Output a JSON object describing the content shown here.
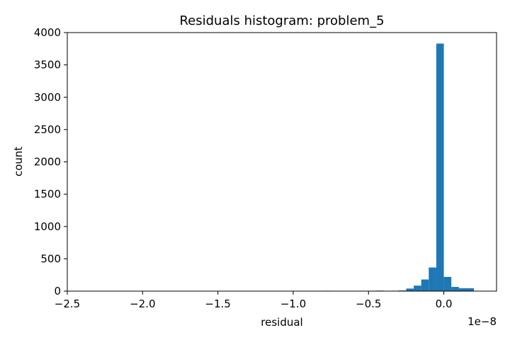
{
  "chart_data": {
    "type": "bar",
    "title": "Residuals histogram: problem_5",
    "xlabel": "residual",
    "ylabel": "count",
    "x_scale_label": "1e−8",
    "bar_color": "#1f77b4",
    "xlim": [
      -2.5,
      0.35
    ],
    "ylim": [
      0,
      4000
    ],
    "xticks": [
      {
        "value": -2.5,
        "label": "−2.5"
      },
      {
        "value": -2.0,
        "label": "−2.0"
      },
      {
        "value": -1.5,
        "label": "−1.5"
      },
      {
        "value": -1.0,
        "label": "−1.0"
      },
      {
        "value": -0.5,
        "label": "−0.5"
      },
      {
        "value": 0.0,
        "label": "0.0"
      }
    ],
    "yticks": [
      {
        "value": 0,
        "label": "0"
      },
      {
        "value": 500,
        "label": "500"
      },
      {
        "value": 1000,
        "label": "1000"
      },
      {
        "value": 1500,
        "label": "1500"
      },
      {
        "value": 2000,
        "label": "2000"
      },
      {
        "value": 2500,
        "label": "2500"
      },
      {
        "value": 3000,
        "label": "3000"
      },
      {
        "value": 3500,
        "label": "3500"
      },
      {
        "value": 4000,
        "label": "4000"
      }
    ],
    "bins": [
      {
        "x0": -2.46,
        "x1": -2.41,
        "count": 1
      },
      {
        "x0": -0.96,
        "x1": -0.91,
        "count": 4
      },
      {
        "x0": -0.91,
        "x1": -0.86,
        "count": 5
      },
      {
        "x0": -0.8,
        "x1": -0.75,
        "count": 6
      },
      {
        "x0": -0.7,
        "x1": -0.65,
        "count": 5
      },
      {
        "x0": -0.5,
        "x1": -0.45,
        "count": 6
      },
      {
        "x0": -0.45,
        "x1": -0.4,
        "count": 8
      },
      {
        "x0": -0.35,
        "x1": -0.3,
        "count": 6
      },
      {
        "x0": -0.3,
        "x1": -0.25,
        "count": 10
      },
      {
        "x0": -0.25,
        "x1": -0.2,
        "count": 40
      },
      {
        "x0": -0.2,
        "x1": -0.15,
        "count": 85
      },
      {
        "x0": -0.15,
        "x1": -0.1,
        "count": 180
      },
      {
        "x0": -0.1,
        "x1": -0.05,
        "count": 365
      },
      {
        "x0": -0.05,
        "x1": 0.0,
        "count": 3830
      },
      {
        "x0": 0.0,
        "x1": 0.05,
        "count": 220
      },
      {
        "x0": 0.05,
        "x1": 0.1,
        "count": 65
      },
      {
        "x0": 0.1,
        "x1": 0.15,
        "count": 45
      },
      {
        "x0": 0.15,
        "x1": 0.2,
        "count": 45
      }
    ]
  }
}
